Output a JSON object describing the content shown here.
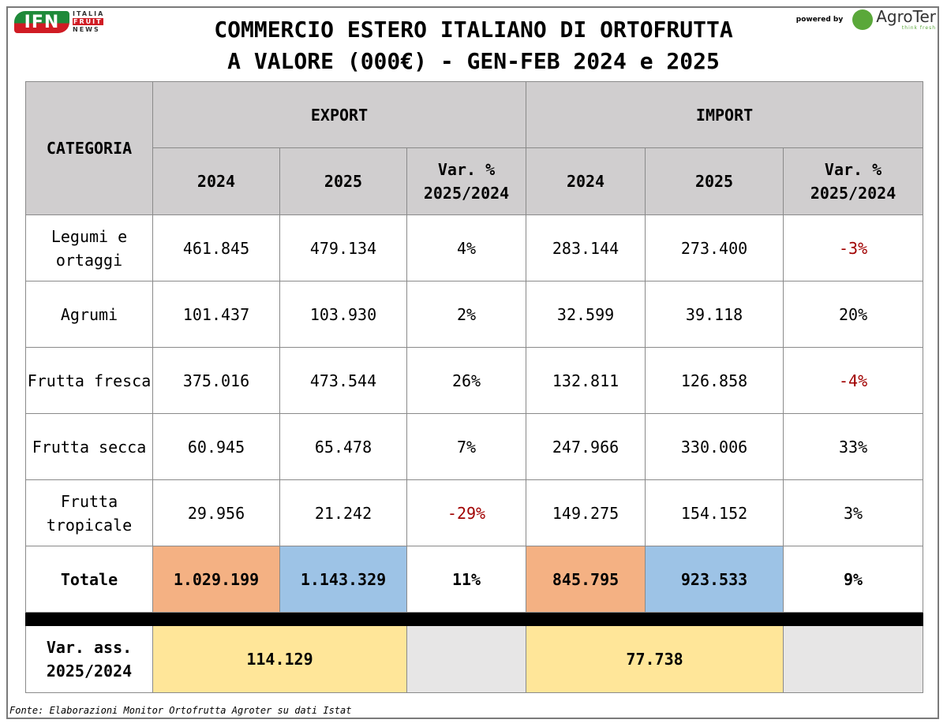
{
  "header": {
    "title_line1": "COMMERCIO ESTERO ITALIANO DI ORTOFRUTTA",
    "title_line2": "A VALORE (000€) - GEN-FEB 2024 e 2025",
    "logo_left": {
      "main": "IFN",
      "line1": "ITALIA",
      "line2": "FRUIT",
      "line3": "NEWS"
    },
    "logo_right": {
      "powered_by": "powered by",
      "brand": "AgroTer",
      "tagline": "think fresh"
    }
  },
  "table": {
    "category_header": "CATEGORIA",
    "export_header": "EXPORT",
    "import_header": "IMPORT",
    "sub_headers": [
      "2024",
      "2025",
      "Var. % 2025/2024",
      "2024",
      "2025",
      "Var. % 2025/2024"
    ],
    "rows": [
      {
        "category": "Legumi e ortaggi",
        "values": [
          "461.845",
          "479.134",
          "4%",
          "283.144",
          "273.400",
          "-3%"
        ]
      },
      {
        "category": "Agrumi",
        "values": [
          "101.437",
          "103.930",
          "2%",
          "32.599",
          "39.118",
          "20%"
        ]
      },
      {
        "category": "Frutta fresca",
        "values": [
          "375.016",
          "473.544",
          "26%",
          "132.811",
          "126.858",
          "-4%"
        ]
      },
      {
        "category": "Frutta secca",
        "values": [
          "60.945",
          "65.478",
          "7%",
          "247.966",
          "330.006",
          "33%"
        ]
      },
      {
        "category": "Frutta tropicale",
        "values": [
          "29.956",
          "21.242",
          "-29%",
          "149.275",
          "154.152",
          "3%"
        ]
      }
    ],
    "total": {
      "category": "Totale",
      "values": [
        "1.029.199",
        "1.143.329",
        "11%",
        "845.795",
        "923.533",
        "9%"
      ]
    },
    "abs_var": {
      "label": "Var. ass. 2025/2024",
      "export": "114.129",
      "import": "77.738"
    }
  },
  "colors": {
    "header_gray": "#d0cecf",
    "orange_2024": "#f4b183",
    "blue_2025": "#9dc3e6",
    "yellow_abs": "#ffe699",
    "negative": "#a00000"
  },
  "footer": {
    "source": "Fonte: Elaborazioni Monitor Ortofrutta Agroter su dati Istat"
  }
}
